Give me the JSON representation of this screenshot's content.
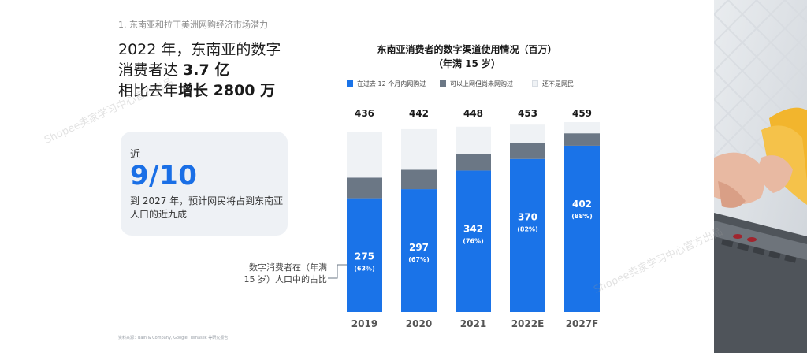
{
  "section_label": "1. 东南亚和拉丁美洲网购经济市场潜力",
  "headline": {
    "line1": "2022 年，东南亚的数字",
    "line2_pre": "消费者达 ",
    "line2_bold": "3.7 亿",
    "line3_pre": "相比去年",
    "line3_bold": "增长 2800 万"
  },
  "callout": {
    "prefix": "近",
    "value": "9/10",
    "description": "到 2027 年，预计网民将占到东南亚人口的近九成"
  },
  "annotation": "数字消费者在（年满 15 岁）人口中的占比",
  "source_note": "资料来源：Bain & Company, Google, Temasek 等研究报告",
  "watermark": "Shopee卖家学习中心官方出品",
  "colors": {
    "blue": "#1a73e8",
    "gray": "#6b7785",
    "light": "#eff2f5",
    "accent": "#1a6fe6"
  },
  "chart_data": {
    "type": "bar",
    "stacked": true,
    "title_line1": "东南亚消费者的数字渠道使用情况（百万）",
    "title_line2": "（年满 15 岁）",
    "categories": [
      "2019",
      "2020",
      "2021",
      "2022E",
      "2027F"
    ],
    "totals": [
      436,
      442,
      448,
      453,
      459
    ],
    "series": [
      {
        "name": "在过去 12 个月内网购过",
        "color": "#1a73e8",
        "values": [
          275,
          297,
          342,
          370,
          402
        ]
      },
      {
        "name": "可以上网但尚未网购过",
        "color": "#6b7785",
        "values": [
          50,
          47,
          40,
          38,
          30
        ]
      },
      {
        "name": "还不是网民",
        "color": "#eff2f5",
        "values": [
          111,
          98,
          66,
          45,
          27
        ]
      }
    ],
    "shares": [
      "(63%)",
      "(67%)",
      "(76%)",
      "(82%)",
      "(88%)"
    ],
    "ylim": [
      0,
      459
    ]
  }
}
